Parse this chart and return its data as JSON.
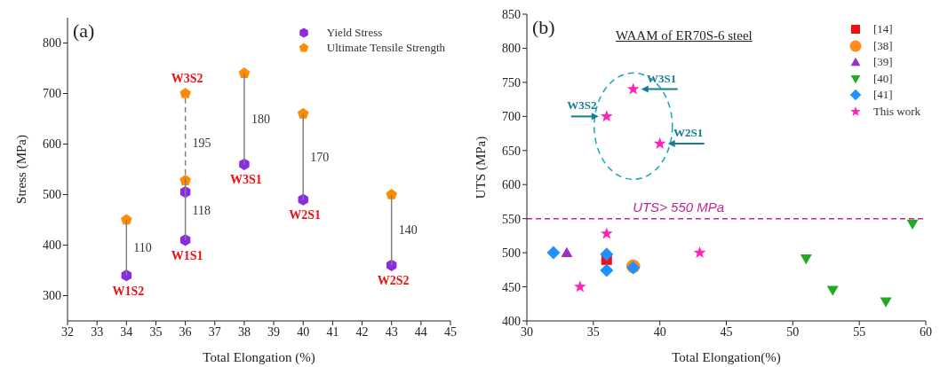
{
  "chart_data": [
    {
      "type": "scatter",
      "xlabel": "Total Elongation (%)",
      "ylabel": "Stress (MPa)",
      "xlim": [
        32,
        45
      ],
      "xticks": [
        32,
        33,
        34,
        35,
        36,
        37,
        38,
        39,
        40,
        41,
        42,
        43,
        44,
        45
      ],
      "ylim": [
        250,
        850
      ],
      "yticks": [
        300,
        400,
        500,
        600,
        700,
        800
      ],
      "legend": "top right",
      "series": [
        {
          "name": "Yield Stress",
          "color": "#8a2be2",
          "x": [
            34,
            36,
            36,
            38,
            40,
            43
          ],
          "values": [
            340,
            410,
            505,
            560,
            490,
            360
          ]
        },
        {
          "name": "Ultimate Tensile Strength",
          "color": "#ff8c00",
          "x": [
            34,
            36,
            36,
            38,
            40,
            43
          ],
          "values": [
            450,
            528,
            700,
            740,
            660,
            500
          ]
        },
        {
          "type": "line",
          "color": "#808080",
          "line_style": "solid",
          "x": [
            34,
            34
          ],
          "values": [
            340,
            450
          ]
        },
        {
          "type": "line",
          "color": "#808080",
          "line_style": "solid",
          "x": [
            36,
            36
          ],
          "values": [
            410,
            528
          ]
        },
        {
          "type": "line",
          "color": "#808080",
          "line_style": "dashed",
          "x": [
            36,
            36
          ],
          "values": [
            505,
            700
          ]
        },
        {
          "type": "line",
          "color": "#808080",
          "line_style": "solid",
          "x": [
            38,
            38
          ],
          "values": [
            560,
            740
          ]
        },
        {
          "type": "line",
          "color": "#808080",
          "line_style": "solid",
          "x": [
            40,
            40
          ],
          "values": [
            490,
            660
          ]
        },
        {
          "type": "line",
          "color": "#808080",
          "line_style": "solid",
          "x": [
            43,
            43
          ],
          "values": [
            360,
            500
          ]
        }
      ],
      "annotations": [
        "(a)",
        {
          "text": "W1S2",
          "x": 34,
          "y": 340
        },
        {
          "text": "W1S1",
          "x": 36,
          "y": 410
        },
        {
          "text": "W3S2",
          "x": 36,
          "y": 700
        },
        {
          "text": "W3S1",
          "x": 38,
          "y": 560
        },
        {
          "text": "W2S1",
          "x": 40,
          "y": 490
        },
        {
          "text": "W2S2",
          "x": 43,
          "y": 360
        },
        "110",
        "118",
        "195",
        "180",
        "170",
        "140"
      ]
    },
    {
      "type": "scatter",
      "title": "WAAM of ER70S-6 steel",
      "xlabel": "Total Elongation(%)",
      "ylabel": "UTS (MPa)",
      "xlim": [
        30,
        60
      ],
      "xticks": [
        30,
        35,
        40,
        45,
        50,
        55,
        60
      ],
      "ylim": [
        400,
        850
      ],
      "yticks": [
        400,
        450,
        500,
        550,
        600,
        650,
        700,
        750,
        800,
        850
      ],
      "legend": "top right",
      "series": [
        {
          "name": "[14]",
          "color": "#ee1111",
          "marker": "square",
          "x": [
            36
          ],
          "values": [
            490
          ]
        },
        {
          "name": "[38]",
          "color": "#ff8c1a",
          "marker": "circle",
          "x": [
            38
          ],
          "values": [
            480
          ]
        },
        {
          "name": "[39]",
          "color": "#9932cc",
          "marker": "triangle",
          "x": [
            33
          ],
          "values": [
            500
          ]
        },
        {
          "name": "[40]",
          "color": "#22aa22",
          "marker": "triangle-down",
          "x": [
            51,
            53,
            57,
            59
          ],
          "values": [
            491,
            445,
            428,
            542
          ]
        },
        {
          "name": "[41]",
          "color": "#1e90ff",
          "marker": "diamond",
          "x": [
            32,
            36,
            36,
            38
          ],
          "values": [
            500,
            498,
            474,
            478
          ]
        },
        {
          "name": "This work",
          "color": "#ff22bb",
          "marker": "star",
          "x": [
            34,
            36,
            36,
            38,
            40,
            43
          ],
          "values": [
            450,
            528,
            700,
            740,
            660,
            500
          ]
        }
      ],
      "ref_lines": [
        {
          "axis": "y",
          "value": 550,
          "label": "UTS> 550 MPa",
          "color": "#c02890",
          "line_style": "dashed"
        }
      ],
      "annotations": [
        "(b)",
        {
          "text": "W3S1",
          "x": 38,
          "y": 740
        },
        {
          "text": "W3S2",
          "x": 36,
          "y": 700
        },
        {
          "text": "W2S1",
          "x": 40,
          "y": 660
        }
      ]
    }
  ]
}
